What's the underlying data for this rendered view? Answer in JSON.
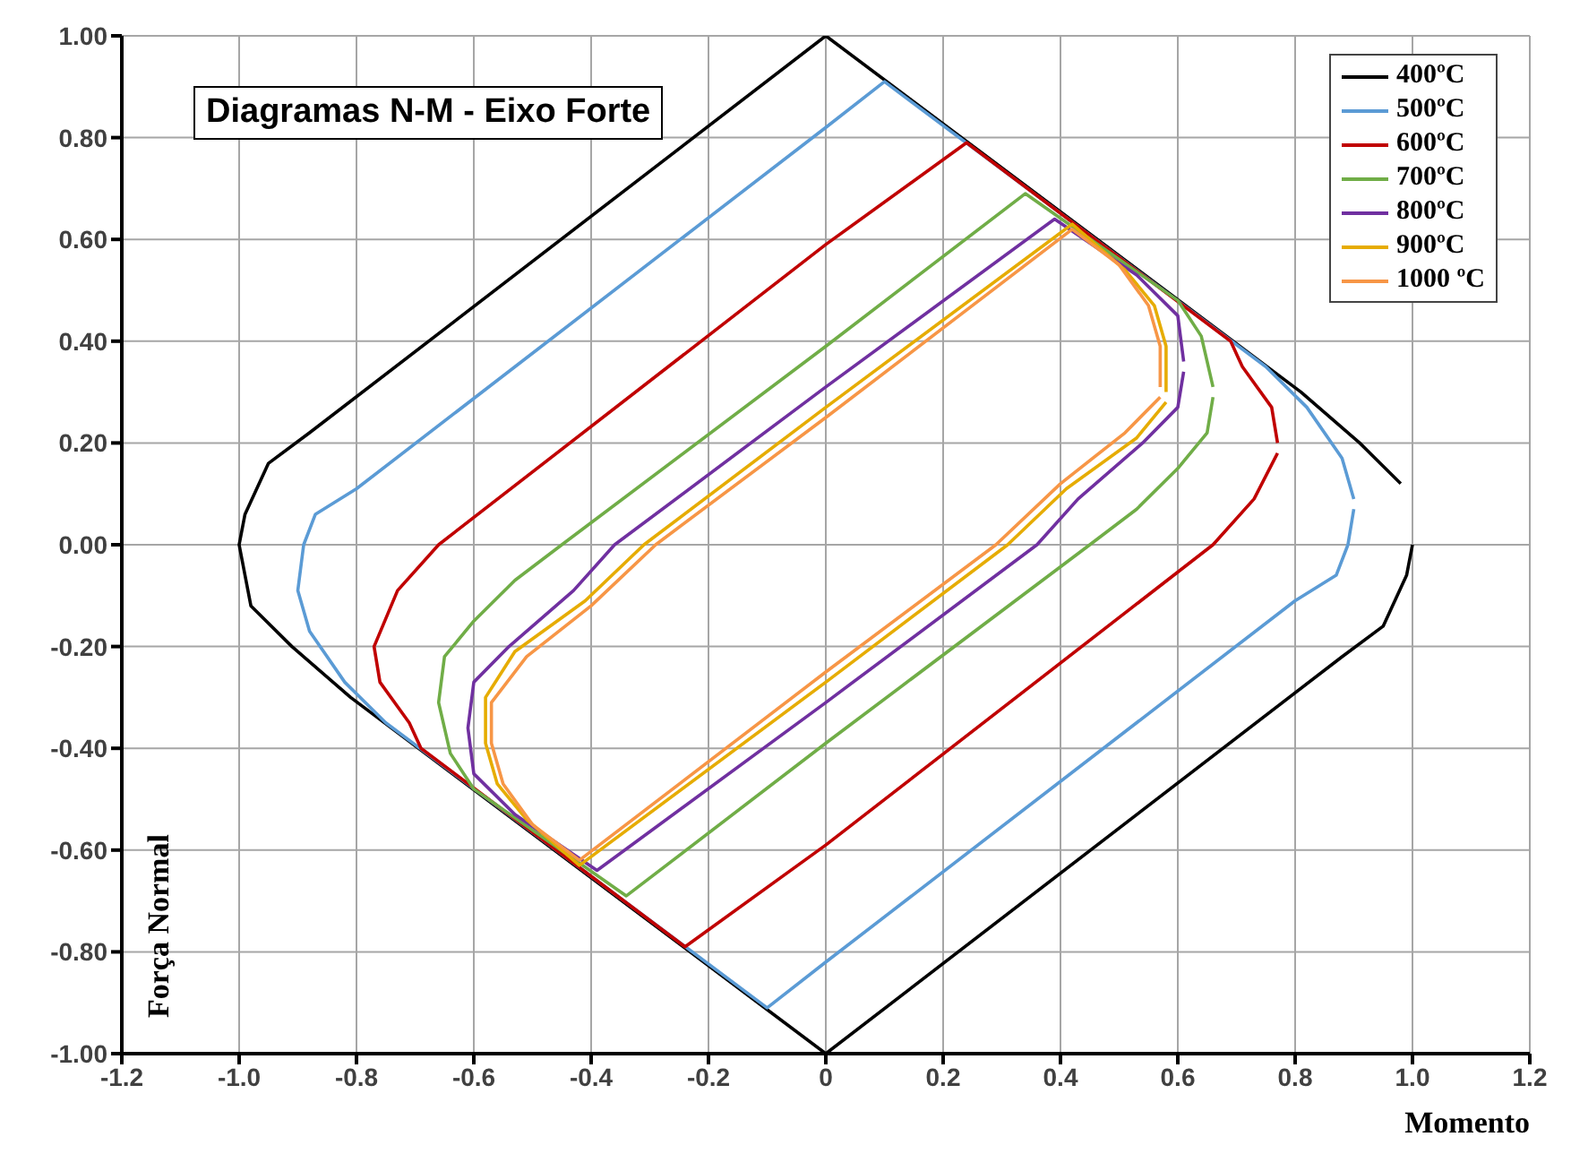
{
  "chart_data": {
    "type": "line",
    "title": "Diagramas N-M - Eixo Forte",
    "xlabel": "Momento",
    "ylabel": "Força Normal",
    "xlim": [
      -1.2,
      1.2
    ],
    "xticks": [
      -1.2,
      {
        "value": -1,
        "label": "-1.0"
      },
      -0.8,
      -0.6,
      -0.4,
      -0.2,
      0,
      0.2,
      0.4,
      0.6,
      0.8,
      {
        "value": 1,
        "label": "1.0"
      },
      1.2
    ],
    "ylim": [
      -1,
      1
    ],
    "yticks": [
      {
        "value": -1,
        "label": "-1.00"
      },
      {
        "value": -0.8,
        "label": "-0.80"
      },
      {
        "value": -0.6,
        "label": "-0.60"
      },
      {
        "value": -0.4,
        "label": "-0.40"
      },
      {
        "value": -0.2,
        "label": "-0.20"
      },
      {
        "value": 0,
        "label": "0.00"
      },
      {
        "value": 0.2,
        "label": "0.20"
      },
      {
        "value": 0.4,
        "label": "0.40"
      },
      {
        "value": 0.6,
        "label": "0.60"
      },
      {
        "value": 0.8,
        "label": "0.80"
      },
      {
        "value": 1,
        "label": "1.00"
      }
    ],
    "grid": true,
    "legend": "top right",
    "marker": "none",
    "series": [
      {
        "name": "400ºC",
        "color": "#000000",
        "x": [
          0.98,
          0.91,
          0.81,
          0,
          -0.88,
          -0.95,
          -0.99,
          -1.0,
          -0.98,
          -0.91,
          -0.81,
          0,
          0.88,
          0.95,
          0.99,
          1.0
        ],
        "values": [
          0.12,
          0.2,
          0.3,
          1,
          0.22,
          0.16,
          0.06,
          0,
          -0.12,
          -0.2,
          -0.3,
          -1,
          -0.22,
          -0.16,
          -0.06,
          0
        ]
      },
      {
        "name": "500ºC",
        "color": "#5b9bd5",
        "x": [
          0.9,
          0.88,
          0.82,
          0.75,
          0.1,
          0,
          -0.8,
          -0.87,
          -0.89,
          -0.9,
          -0.88,
          -0.82,
          -0.75,
          -0.1,
          0,
          0.8,
          0.87,
          0.89,
          0.9
        ],
        "values": [
          0.09,
          0.17,
          0.27,
          0.35,
          0.91,
          0.82,
          0.11,
          0.06,
          0,
          -0.09,
          -0.17,
          -0.27,
          -0.35,
          -0.91,
          -0.82,
          -0.11,
          -0.06,
          0,
          0.07
        ]
      },
      {
        "name": "600ºC",
        "color": "#c00000",
        "x": [
          0.77,
          0.76,
          0.71,
          0.69,
          0.24,
          0,
          -0.66,
          -0.73,
          -0.77,
          -0.76,
          -0.71,
          -0.69,
          -0.24,
          0,
          0.66,
          0.73,
          0.77
        ],
        "values": [
          0.2,
          0.27,
          0.35,
          0.4,
          0.79,
          0.59,
          0,
          -0.09,
          -0.2,
          -0.27,
          -0.35,
          -0.4,
          -0.79,
          -0.59,
          0,
          0.09,
          0.18
        ]
      },
      {
        "name": "700ºC",
        "color": "#70ad47",
        "x": [
          0.66,
          0.64,
          0.6,
          0.34,
          0,
          -0.45,
          -0.53,
          -0.6,
          -0.65,
          -0.66,
          -0.64,
          -0.6,
          -0.34,
          0,
          0.45,
          0.53,
          0.6,
          0.65,
          0.66
        ],
        "values": [
          0.31,
          0.41,
          0.48,
          0.69,
          0.39,
          0,
          -0.07,
          -0.15,
          -0.22,
          -0.31,
          -0.41,
          -0.48,
          -0.69,
          -0.39,
          0,
          0.07,
          0.15,
          0.22,
          0.29
        ]
      },
      {
        "name": "800ºC",
        "color": "#7030a0",
        "x": [
          0.61,
          0.6,
          0.53,
          0.39,
          0,
          -0.36,
          -0.43,
          -0.54,
          -0.6,
          -0.61,
          -0.6,
          -0.53,
          -0.39,
          0,
          0.36,
          0.43,
          0.54,
          0.6,
          0.61
        ],
        "values": [
          0.36,
          0.45,
          0.53,
          0.64,
          0.31,
          0,
          -0.09,
          -0.2,
          -0.27,
          -0.36,
          -0.45,
          -0.53,
          -0.64,
          -0.31,
          0,
          0.09,
          0.2,
          0.27,
          0.34
        ]
      },
      {
        "name": "900ºC",
        "color": "#e6ac00",
        "x": [
          0.58,
          0.58,
          0.56,
          0.51,
          0.42,
          0,
          -0.31,
          -0.41,
          -0.53,
          -0.58,
          -0.58,
          -0.56,
          -0.51,
          -0.42,
          0,
          0.31,
          0.41,
          0.53,
          0.58
        ],
        "values": [
          0.3,
          0.39,
          0.47,
          0.54,
          0.63,
          0.27,
          0,
          -0.11,
          -0.21,
          -0.3,
          -0.39,
          -0.47,
          -0.54,
          -0.63,
          -0.27,
          0,
          0.11,
          0.21,
          0.28
        ]
      },
      {
        "name": "1000 ºC",
        "color": "#f79646",
        "x": [
          0.57,
          0.57,
          0.55,
          0.5,
          0.42,
          0,
          -0.29,
          -0.4,
          -0.51,
          -0.57,
          -0.57,
          -0.55,
          -0.5,
          -0.42,
          0,
          0.29,
          0.4,
          0.51,
          0.57
        ],
        "values": [
          0.31,
          0.39,
          0.47,
          0.55,
          0.62,
          0.25,
          0,
          -0.12,
          -0.22,
          -0.31,
          -0.39,
          -0.47,
          -0.55,
          -0.62,
          -0.25,
          0,
          0.12,
          0.22,
          0.29
        ]
      }
    ]
  }
}
